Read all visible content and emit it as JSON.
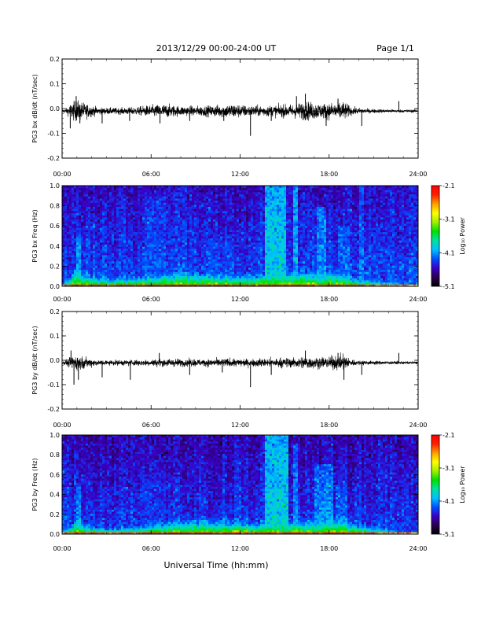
{
  "header": {
    "date_range": "2013/12/29  00:00-24:00 UT",
    "page": "Page 1/1"
  },
  "xaxis": {
    "label": "Universal Time (hh:mm)",
    "ticks": [
      "00:00",
      "06:00",
      "12:00",
      "18:00",
      "24:00"
    ],
    "range_hours": [
      0,
      24
    ]
  },
  "colorbar": {
    "ticks": [
      "-2.1",
      "-3.1",
      "-4.1",
      "-5.1"
    ],
    "label": "Log₁₀ Power",
    "range": [
      -5.1,
      -2.1
    ],
    "colors": [
      "#000000",
      "#2a0050",
      "#3a00c8",
      "#0050ff",
      "#00c0ff",
      "#00e0a0",
      "#00e000",
      "#a0f000",
      "#ffff00",
      "#ffa000",
      "#ff2000",
      "#ff0000"
    ]
  },
  "chart_data": [
    {
      "type": "line",
      "name": "bx-waveform",
      "ylabel": "PG3 bx dB/dt (nT/sec)",
      "ylim": [
        -0.2,
        0.2
      ],
      "yticks": [
        "0.2",
        "0.1",
        "0.0",
        "-0.1",
        "-0.2"
      ],
      "baseline": -0.01,
      "noise_amplitude": [
        [
          0.0,
          0.006
        ],
        [
          0.3,
          0.01
        ],
        [
          0.6,
          0.03
        ],
        [
          1.0,
          0.04
        ],
        [
          1.5,
          0.03
        ],
        [
          2.5,
          0.012
        ],
        [
          4.0,
          0.012
        ],
        [
          5.0,
          0.015
        ],
        [
          6.0,
          0.022
        ],
        [
          7.0,
          0.025
        ],
        [
          8.0,
          0.018
        ],
        [
          10.0,
          0.02
        ],
        [
          11.5,
          0.028
        ],
        [
          12.5,
          0.02
        ],
        [
          13.5,
          0.02
        ],
        [
          14.5,
          0.022
        ],
        [
          15.5,
          0.025
        ],
        [
          16.5,
          0.035
        ],
        [
          17.5,
          0.028
        ],
        [
          18.5,
          0.032
        ],
        [
          19.0,
          0.035
        ],
        [
          19.5,
          0.015
        ],
        [
          20.5,
          0.008
        ],
        [
          22.0,
          0.006
        ],
        [
          24.0,
          0.005
        ]
      ],
      "spikes": [
        {
          "t": 0.55,
          "v": -0.08
        },
        {
          "t": 0.95,
          "v": 0.05
        },
        {
          "t": 1.2,
          "v": -0.06
        },
        {
          "t": 2.7,
          "v": -0.06
        },
        {
          "t": 4.55,
          "v": -0.05
        },
        {
          "t": 6.6,
          "v": -0.06
        },
        {
          "t": 8.6,
          "v": -0.05
        },
        {
          "t": 10.9,
          "v": -0.05
        },
        {
          "t": 12.7,
          "v": -0.11
        },
        {
          "t": 14.1,
          "v": -0.05
        },
        {
          "t": 15.8,
          "v": 0.05
        },
        {
          "t": 16.4,
          "v": 0.06
        },
        {
          "t": 17.8,
          "v": -0.07
        },
        {
          "t": 18.6,
          "v": 0.04
        },
        {
          "t": 20.2,
          "v": -0.07
        },
        {
          "t": 22.7,
          "v": 0.03
        }
      ]
    },
    {
      "type": "heatmap",
      "name": "bx-spectrogram",
      "ylabel": "PG3 bx Freq (Hz)",
      "ylim": [
        0.0,
        1.0
      ],
      "yticks": [
        "1.0",
        "0.8",
        "0.6",
        "0.4",
        "0.2",
        "0.0"
      ],
      "zlabel": "Log₁₀ Power",
      "zlim": [
        -5.1,
        -2.1
      ],
      "background_power": -4.55,
      "low_freq_band": [
        [
          0.0,
          0.02
        ],
        [
          0.5,
          0.08
        ],
        [
          1.0,
          0.16
        ],
        [
          1.5,
          0.1
        ],
        [
          3.0,
          0.06
        ],
        [
          5.0,
          0.07
        ],
        [
          7.0,
          0.1
        ],
        [
          9.0,
          0.12
        ],
        [
          11.0,
          0.1
        ],
        [
          13.0,
          0.09
        ],
        [
          14.5,
          0.12
        ],
        [
          16.0,
          0.12
        ],
        [
          17.5,
          0.1
        ],
        [
          18.5,
          0.13
        ],
        [
          20.0,
          0.06
        ],
        [
          22.0,
          0.03
        ],
        [
          24.0,
          0.02
        ]
      ],
      "broadband_intervals": [
        {
          "start": 13.7,
          "end": 15.1,
          "fmax": 1.0,
          "power": -3.9
        },
        {
          "start": 15.5,
          "end": 15.9,
          "fmax": 1.0,
          "power": -4.0
        },
        {
          "start": 17.2,
          "end": 17.8,
          "fmax": 0.8,
          "power": -4.1
        },
        {
          "start": 18.6,
          "end": 19.4,
          "fmax": 0.6,
          "power": -4.2
        },
        {
          "start": 20.0,
          "end": 20.3,
          "fmax": 1.0,
          "power": -4.2
        },
        {
          "start": 0.9,
          "end": 1.2,
          "fmax": 0.5,
          "power": -4.0
        },
        {
          "start": 5.6,
          "end": 7.0,
          "fmax": 0.9,
          "power": -4.3
        },
        {
          "start": 10.0,
          "end": 11.6,
          "fmax": 0.5,
          "power": -4.3
        }
      ]
    },
    {
      "type": "line",
      "name": "by-waveform",
      "ylabel": "PG3 by dB/dt (nT/sec)",
      "ylim": [
        -0.2,
        0.2
      ],
      "yticks": [
        "0.2",
        "0.1",
        "0.0",
        "-0.1",
        "-0.2"
      ],
      "baseline": -0.01,
      "noise_amplitude": [
        [
          0.0,
          0.006
        ],
        [
          0.3,
          0.01
        ],
        [
          0.6,
          0.025
        ],
        [
          1.0,
          0.03
        ],
        [
          1.5,
          0.02
        ],
        [
          2.5,
          0.01
        ],
        [
          4.0,
          0.01
        ],
        [
          5.0,
          0.012
        ],
        [
          6.0,
          0.012
        ],
        [
          7.0,
          0.015
        ],
        [
          8.0,
          0.014
        ],
        [
          10.0,
          0.014
        ],
        [
          11.5,
          0.016
        ],
        [
          12.5,
          0.014
        ],
        [
          13.5,
          0.016
        ],
        [
          14.5,
          0.018
        ],
        [
          15.5,
          0.018
        ],
        [
          16.5,
          0.025
        ],
        [
          17.5,
          0.02
        ],
        [
          18.5,
          0.026
        ],
        [
          19.0,
          0.03
        ],
        [
          19.5,
          0.012
        ],
        [
          20.5,
          0.008
        ],
        [
          22.0,
          0.006
        ],
        [
          24.0,
          0.005
        ]
      ],
      "spikes": [
        {
          "t": 0.6,
          "v": 0.04
        },
        {
          "t": 0.8,
          "v": -0.1
        },
        {
          "t": 1.1,
          "v": -0.08
        },
        {
          "t": 2.7,
          "v": -0.07
        },
        {
          "t": 4.6,
          "v": -0.08
        },
        {
          "t": 6.55,
          "v": 0.03
        },
        {
          "t": 8.6,
          "v": -0.06
        },
        {
          "t": 10.8,
          "v": -0.05
        },
        {
          "t": 12.7,
          "v": -0.11
        },
        {
          "t": 14.1,
          "v": -0.06
        },
        {
          "t": 16.4,
          "v": 0.04
        },
        {
          "t": 18.6,
          "v": 0.03
        },
        {
          "t": 19.0,
          "v": -0.08
        },
        {
          "t": 20.2,
          "v": -0.06
        },
        {
          "t": 22.7,
          "v": 0.03
        }
      ]
    },
    {
      "type": "heatmap",
      "name": "by-spectrogram",
      "ylabel": "PG3 by Freq (Hz)",
      "ylim": [
        0.0,
        1.0
      ],
      "yticks": [
        "1.0",
        "0.8",
        "0.6",
        "0.4",
        "0.2",
        "0.0"
      ],
      "zlabel": "Log₁₀ Power",
      "zlim": [
        -5.1,
        -2.1
      ],
      "background_power": -4.6,
      "low_freq_band": [
        [
          0.0,
          0.02
        ],
        [
          0.5,
          0.06
        ],
        [
          1.0,
          0.14
        ],
        [
          1.5,
          0.08
        ],
        [
          3.0,
          0.05
        ],
        [
          5.0,
          0.06
        ],
        [
          7.0,
          0.1
        ],
        [
          9.0,
          0.13
        ],
        [
          11.0,
          0.12
        ],
        [
          13.0,
          0.1
        ],
        [
          14.5,
          0.12
        ],
        [
          16.0,
          0.12
        ],
        [
          17.5,
          0.12
        ],
        [
          18.5,
          0.16
        ],
        [
          20.0,
          0.08
        ],
        [
          22.0,
          0.03
        ],
        [
          24.0,
          0.02
        ]
      ],
      "broadband_intervals": [
        {
          "start": 13.7,
          "end": 15.2,
          "fmax": 1.0,
          "power": -3.9
        },
        {
          "start": 15.5,
          "end": 15.9,
          "fmax": 0.9,
          "power": -4.1
        },
        {
          "start": 17.0,
          "end": 18.2,
          "fmax": 0.7,
          "power": -4.1
        },
        {
          "start": 18.5,
          "end": 19.3,
          "fmax": 0.5,
          "power": -4.2
        },
        {
          "start": 0.9,
          "end": 1.2,
          "fmax": 0.5,
          "power": -4.1
        },
        {
          "start": 5.6,
          "end": 7.0,
          "fmax": 0.6,
          "power": -4.4
        }
      ]
    }
  ]
}
